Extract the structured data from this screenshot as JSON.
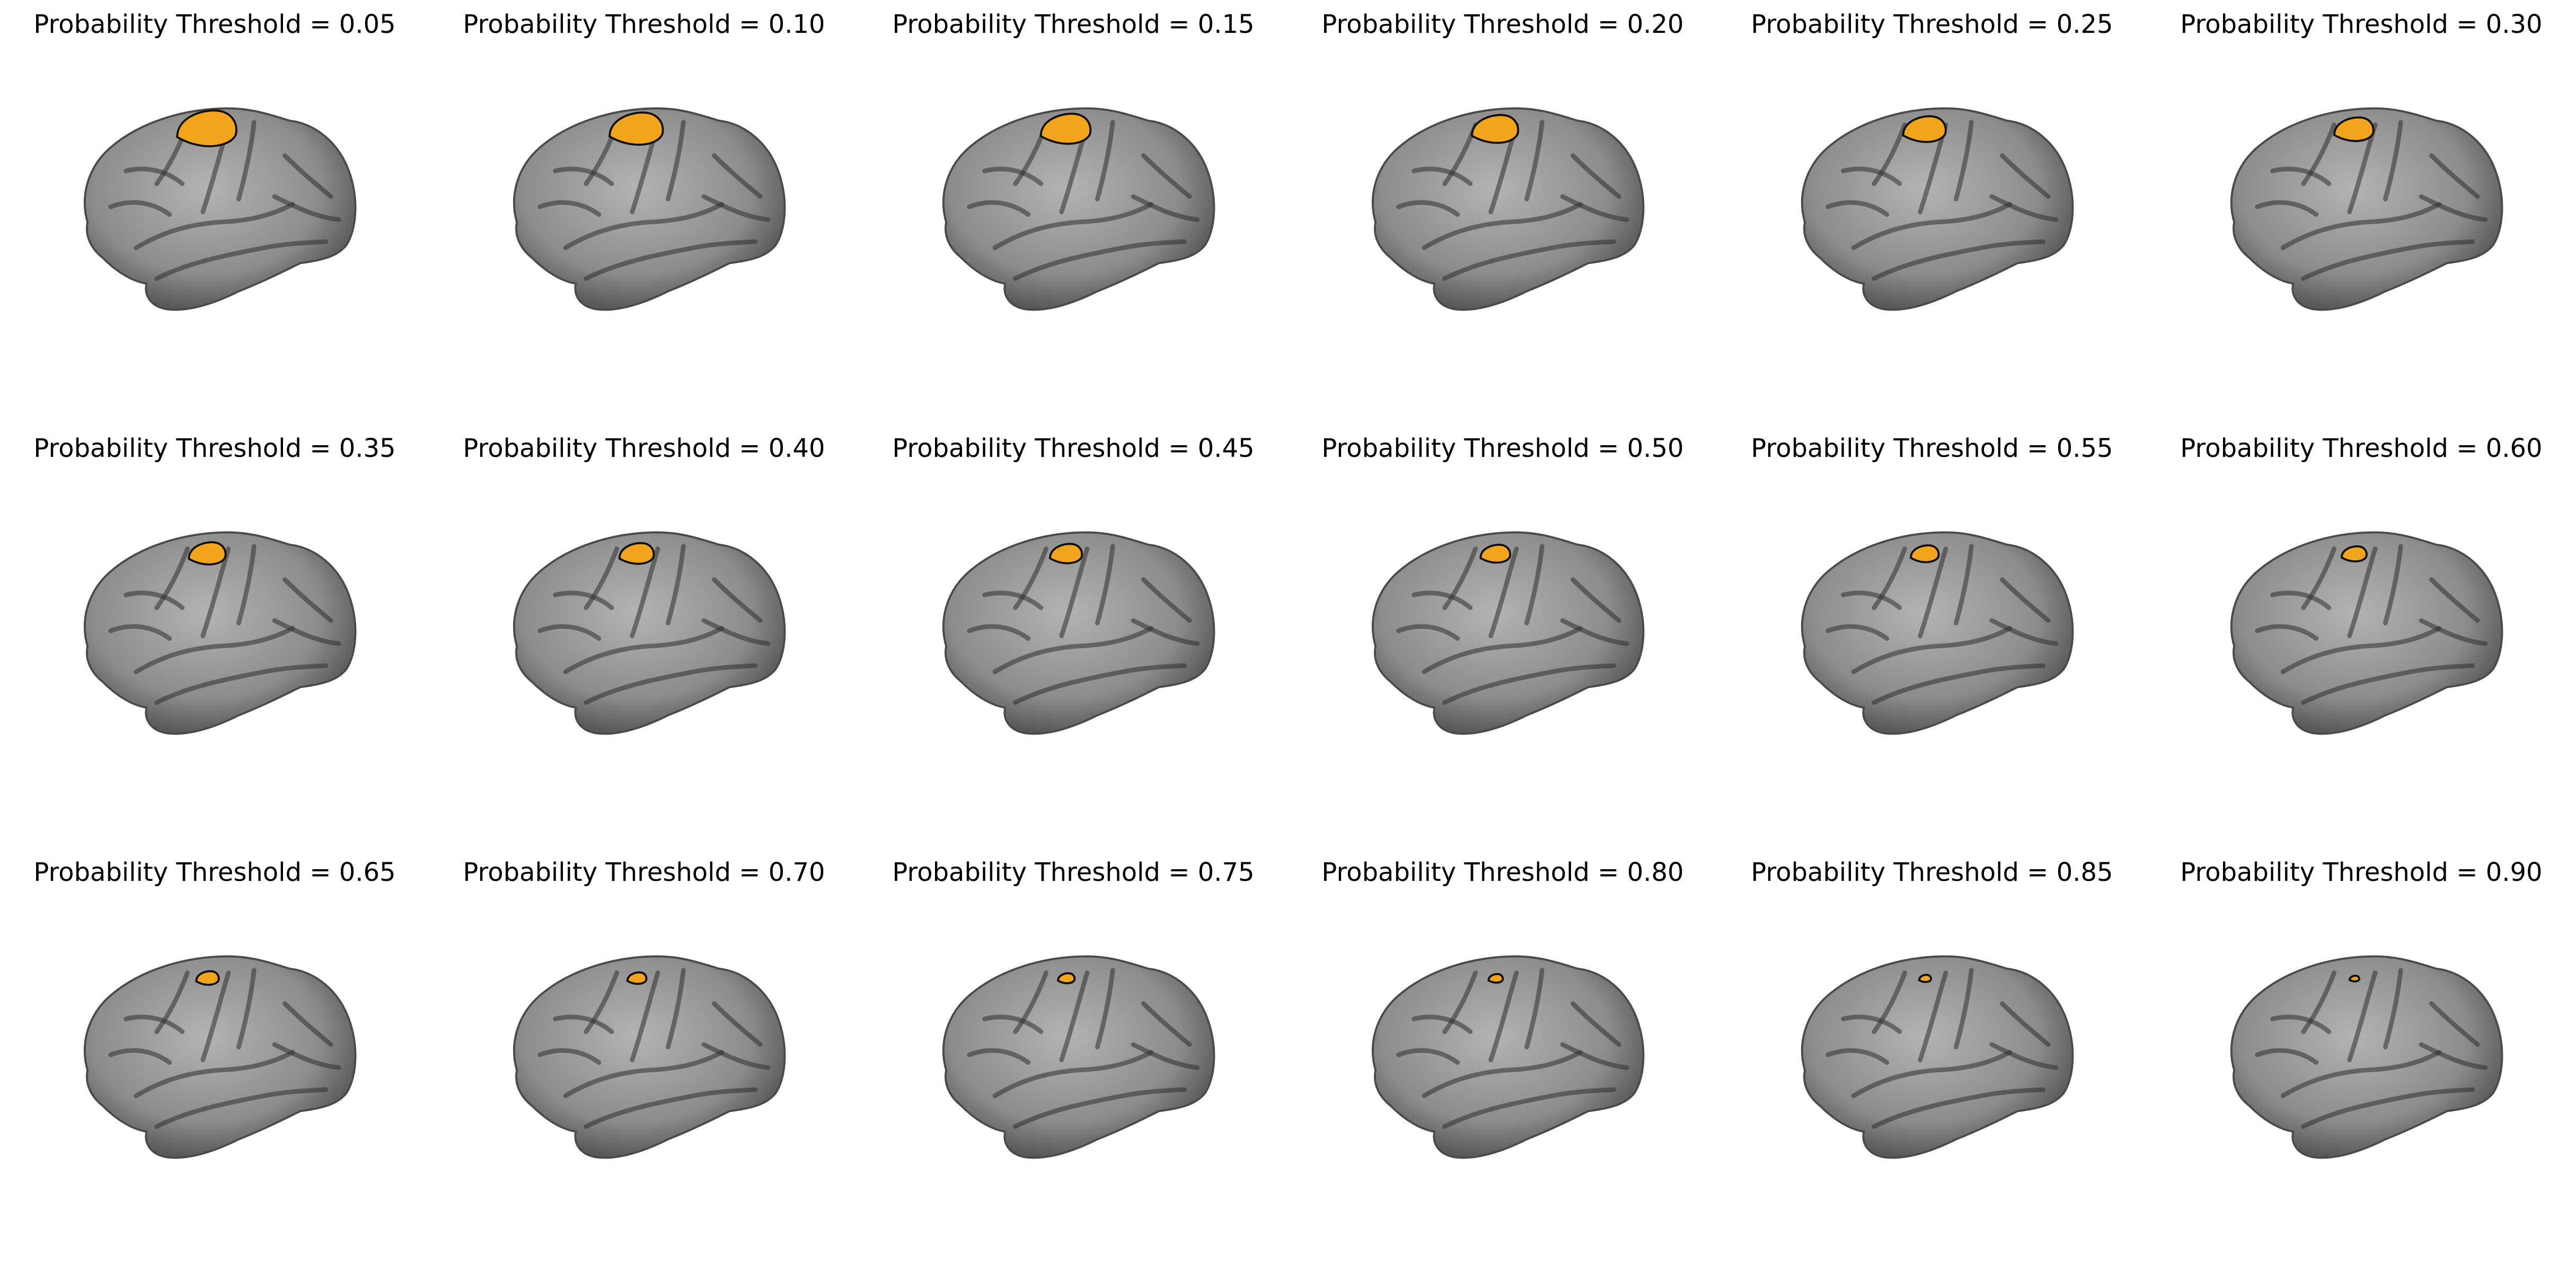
{
  "figure": {
    "colors": {
      "cortex": "#8c8c8c",
      "cortex_light": "#b3b3b3",
      "cortex_dark": "#4a4a4a",
      "sulcus": "#2f2f2f",
      "highlight": "#f2a51a",
      "outline": "#111111"
    },
    "highlight_region": "orange parcel with black outline on lateral cortical surface",
    "panels": [
      {
        "title": "Probability Threshold = 0.05",
        "threshold": 0.05,
        "region_scale": 1.0
      },
      {
        "title": "Probability Threshold = 0.10",
        "threshold": 0.1,
        "region_scale": 0.9
      },
      {
        "title": "Probability Threshold = 0.15",
        "threshold": 0.15,
        "region_scale": 0.84
      },
      {
        "title": "Probability Threshold = 0.20",
        "threshold": 0.2,
        "region_scale": 0.78
      },
      {
        "title": "Probability Threshold = 0.25",
        "threshold": 0.25,
        "region_scale": 0.72
      },
      {
        "title": "Probability Threshold = 0.30",
        "threshold": 0.3,
        "region_scale": 0.66
      },
      {
        "title": "Probability Threshold = 0.35",
        "threshold": 0.35,
        "region_scale": 0.62
      },
      {
        "title": "Probability Threshold = 0.40",
        "threshold": 0.4,
        "region_scale": 0.58
      },
      {
        "title": "Probability Threshold = 0.45",
        "threshold": 0.45,
        "region_scale": 0.54
      },
      {
        "title": "Probability Threshold = 0.50",
        "threshold": 0.5,
        "region_scale": 0.5
      },
      {
        "title": "Probability Threshold = 0.55",
        "threshold": 0.55,
        "region_scale": 0.47
      },
      {
        "title": "Probability Threshold = 0.60",
        "threshold": 0.6,
        "region_scale": 0.42
      },
      {
        "title": "Probability Threshold = 0.65",
        "threshold": 0.65,
        "region_scale": 0.38
      },
      {
        "title": "Probability Threshold = 0.70",
        "threshold": 0.7,
        "region_scale": 0.32
      },
      {
        "title": "Probability Threshold = 0.75",
        "threshold": 0.75,
        "region_scale": 0.28
      },
      {
        "title": "Probability Threshold = 0.80",
        "threshold": 0.8,
        "region_scale": 0.24
      },
      {
        "title": "Probability Threshold = 0.85",
        "threshold": 0.85,
        "region_scale": 0.2
      },
      {
        "title": "Probability Threshold = 0.90",
        "threshold": 0.9,
        "region_scale": 0.16
      }
    ]
  }
}
